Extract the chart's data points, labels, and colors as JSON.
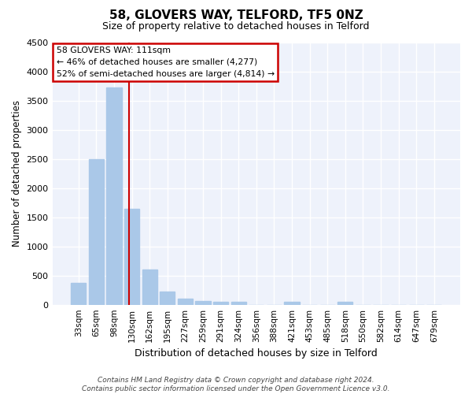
{
  "title": "58, GLOVERS WAY, TELFORD, TF5 0NZ",
  "subtitle": "Size of property relative to detached houses in Telford",
  "xlabel": "Distribution of detached houses by size in Telford",
  "ylabel": "Number of detached properties",
  "categories": [
    "33sqm",
    "65sqm",
    "98sqm",
    "130sqm",
    "162sqm",
    "195sqm",
    "227sqm",
    "259sqm",
    "291sqm",
    "324sqm",
    "356sqm",
    "388sqm",
    "421sqm",
    "453sqm",
    "485sqm",
    "518sqm",
    "550sqm",
    "582sqm",
    "614sqm",
    "647sqm",
    "679sqm"
  ],
  "values": [
    375,
    2500,
    3725,
    1650,
    600,
    230,
    110,
    60,
    55,
    50,
    0,
    0,
    55,
    0,
    0,
    50,
    0,
    0,
    0,
    0,
    0
  ],
  "bar_color": "#aac8e8",
  "annotation_box_text": "58 GLOVERS WAY: 111sqm\n← 46% of detached houses are smaller (4,277)\n52% of semi-detached houses are larger (4,814) →",
  "vline_color": "#cc0000",
  "background_color": "#eef2fb",
  "grid_color": "#ffffff",
  "footer_text": "Contains HM Land Registry data © Crown copyright and database right 2024.\nContains public sector information licensed under the Open Government Licence v3.0.",
  "ylim": [
    0,
    4500
  ],
  "yticks": [
    0,
    500,
    1000,
    1500,
    2000,
    2500,
    3000,
    3500,
    4000,
    4500
  ]
}
